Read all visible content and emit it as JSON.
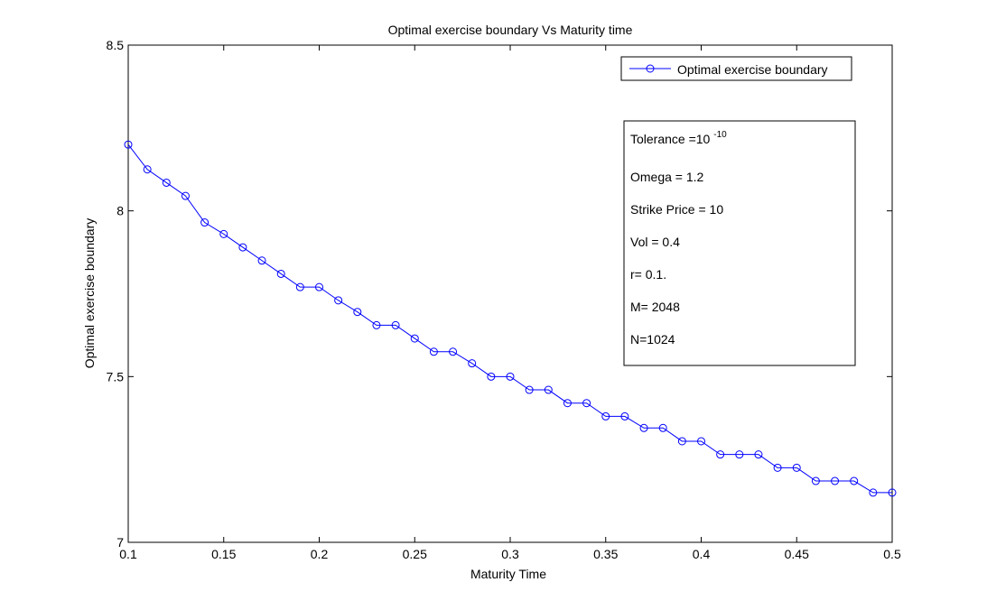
{
  "chart_data": {
    "type": "line",
    "title": "Optimal exercise boundary Vs Maturity time",
    "xlabel": "Maturity Time",
    "ylabel": "Optimal exercise boundary",
    "xlim": [
      0.1,
      0.5
    ],
    "ylim": [
      7,
      8.5
    ],
    "xticks": [
      0.1,
      0.15,
      0.2,
      0.25,
      0.3,
      0.35,
      0.4,
      0.45,
      0.5
    ],
    "xtick_labels": [
      "0.1",
      "0.15",
      "0.2",
      "0.25",
      "0.3",
      "0.35",
      "0.4",
      "0.45",
      "0.5"
    ],
    "yticks": [
      7,
      7.5,
      8,
      8.5
    ],
    "ytick_labels": [
      "7",
      "7.5",
      "8",
      "8.5"
    ],
    "grid": false,
    "legend_position": "top-right",
    "series": [
      {
        "name": "Optimal exercise boundary",
        "color": "#0000ff",
        "marker": "circle",
        "x": [
          0.1,
          0.11,
          0.12,
          0.13,
          0.14,
          0.15,
          0.16,
          0.17,
          0.18,
          0.19,
          0.2,
          0.21,
          0.22,
          0.23,
          0.24,
          0.25,
          0.26,
          0.27,
          0.28,
          0.29,
          0.3,
          0.31,
          0.32,
          0.33,
          0.34,
          0.35,
          0.36,
          0.37,
          0.38,
          0.39,
          0.4,
          0.41,
          0.42,
          0.43,
          0.44,
          0.45,
          0.46,
          0.47,
          0.48,
          0.49,
          0.5
        ],
        "y": [
          8.2,
          8.125,
          8.085,
          8.045,
          7.965,
          7.93,
          7.89,
          7.85,
          7.81,
          7.77,
          7.77,
          7.73,
          7.695,
          7.655,
          7.655,
          7.615,
          7.575,
          7.575,
          7.54,
          7.5,
          7.5,
          7.46,
          7.46,
          7.42,
          7.42,
          7.38,
          7.38,
          7.345,
          7.345,
          7.305,
          7.305,
          7.265,
          7.265,
          7.265,
          7.225,
          7.225,
          7.185,
          7.185,
          7.185,
          7.15,
          7.15
        ]
      }
    ],
    "annotation": {
      "tolerance_label": "Tolerance =10",
      "tolerance_exponent": "-10",
      "lines": [
        "Omega = 1.2",
        "Strike Price = 10",
        "Vol = 0.4",
        "r= 0.1.",
        "M= 2048",
        "N=1024"
      ]
    }
  }
}
